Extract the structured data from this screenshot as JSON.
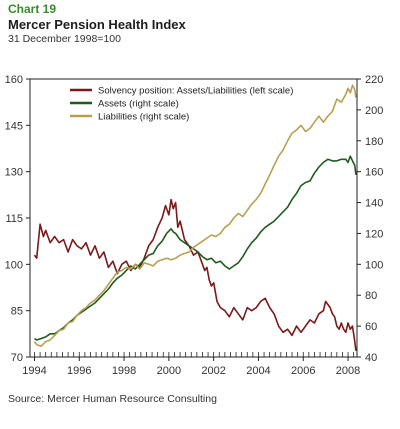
{
  "header": {
    "label": "Chart 19",
    "title": "Mercer Pension Health Index",
    "subtitle": "31 December 1998=100"
  },
  "footer": {
    "source": "Source: Mercer Human Resource Consulting"
  },
  "colors": {
    "solvency": "#7a1a1a",
    "assets": "#1e5c1e",
    "liabilities": "#b8a050"
  },
  "chart_data": {
    "type": "line",
    "title": "Mercer Pension Health Index",
    "subtitle": "31 December 1998=100",
    "xlim": [
      1993.8,
      2008.4
    ],
    "x_ticks": [
      "1994",
      "1996",
      "1998",
      "2000",
      "2002",
      "2004",
      "2006",
      "2008"
    ],
    "y_left": {
      "label": "left scale",
      "ylim": [
        70,
        160
      ],
      "ticks": [
        "70",
        "85",
        "100",
        "115",
        "130",
        "145",
        "160"
      ]
    },
    "y_right": {
      "label": "right scale",
      "ylim": [
        40,
        220
      ],
      "ticks": [
        "40",
        "60",
        "80",
        "100",
        "120",
        "140",
        "160",
        "180",
        "200",
        "220"
      ]
    },
    "legend_position": "top-right",
    "grid": false,
    "series": [
      {
        "name": "Solvency position: Assets/Liabilities (left scale)",
        "axis": "left",
        "color": "#7a1a1a",
        "points": [
          [
            1994.0,
            103
          ],
          [
            1994.1,
            102
          ],
          [
            1994.25,
            113
          ],
          [
            1994.4,
            109
          ],
          [
            1994.5,
            111
          ],
          [
            1994.7,
            107
          ],
          [
            1994.9,
            109
          ],
          [
            1995.1,
            107
          ],
          [
            1995.3,
            108
          ],
          [
            1995.5,
            104
          ],
          [
            1995.7,
            108
          ],
          [
            1995.9,
            106
          ],
          [
            1996.1,
            105
          ],
          [
            1996.3,
            107
          ],
          [
            1996.5,
            103
          ],
          [
            1996.7,
            106
          ],
          [
            1996.9,
            102
          ],
          [
            1997.1,
            104
          ],
          [
            1997.3,
            99
          ],
          [
            1997.5,
            101
          ],
          [
            1997.7,
            97
          ],
          [
            1997.9,
            100
          ],
          [
            1998.1,
            101
          ],
          [
            1998.3,
            98
          ],
          [
            1998.5,
            100
          ],
          [
            1998.7,
            99
          ],
          [
            1998.9,
            102
          ],
          [
            1999.1,
            106
          ],
          [
            1999.3,
            108
          ],
          [
            1999.5,
            112
          ],
          [
            1999.7,
            115
          ],
          [
            1999.85,
            119
          ],
          [
            2000.0,
            116
          ],
          [
            2000.1,
            121
          ],
          [
            2000.2,
            118
          ],
          [
            2000.3,
            120
          ],
          [
            2000.4,
            112
          ],
          [
            2000.5,
            114
          ],
          [
            2000.7,
            108
          ],
          [
            2000.9,
            106
          ],
          [
            2001.1,
            103
          ],
          [
            2001.3,
            104
          ],
          [
            2001.5,
            100
          ],
          [
            2001.6,
            98
          ],
          [
            2001.7,
            99
          ],
          [
            2001.8,
            95
          ],
          [
            2001.9,
            93
          ],
          [
            2002.0,
            94
          ],
          [
            2002.15,
            88
          ],
          [
            2002.3,
            86
          ],
          [
            2002.5,
            85
          ],
          [
            2002.7,
            83
          ],
          [
            2002.9,
            86
          ],
          [
            2003.1,
            84
          ],
          [
            2003.3,
            82
          ],
          [
            2003.5,
            86
          ],
          [
            2003.7,
            85
          ],
          [
            2003.9,
            86
          ],
          [
            2004.1,
            88
          ],
          [
            2004.3,
            89
          ],
          [
            2004.5,
            86
          ],
          [
            2004.7,
            84
          ],
          [
            2004.9,
            80
          ],
          [
            2005.1,
            78
          ],
          [
            2005.3,
            79
          ],
          [
            2005.5,
            77
          ],
          [
            2005.7,
            80
          ],
          [
            2005.9,
            78
          ],
          [
            2006.1,
            80
          ],
          [
            2006.3,
            82
          ],
          [
            2006.5,
            81
          ],
          [
            2006.7,
            84
          ],
          [
            2006.9,
            85
          ],
          [
            2007.0,
            88
          ],
          [
            2007.1,
            87
          ],
          [
            2007.2,
            86
          ],
          [
            2007.3,
            84
          ],
          [
            2007.4,
            83
          ],
          [
            2007.5,
            80
          ],
          [
            2007.6,
            79
          ],
          [
            2007.7,
            81
          ],
          [
            2007.8,
            79
          ],
          [
            2007.9,
            78
          ],
          [
            2008.0,
            81
          ],
          [
            2008.1,
            79
          ],
          [
            2008.2,
            80
          ],
          [
            2008.3,
            75
          ],
          [
            2008.35,
            72
          ]
        ]
      },
      {
        "name": "Assets (right scale)",
        "axis": "right",
        "color": "#1e5c1e",
        "points": [
          [
            1994.0,
            52
          ],
          [
            1994.1,
            51
          ],
          [
            1994.3,
            52
          ],
          [
            1994.5,
            53
          ],
          [
            1994.7,
            55
          ],
          [
            1994.9,
            55
          ],
          [
            1995.1,
            57
          ],
          [
            1995.3,
            59
          ],
          [
            1995.5,
            62
          ],
          [
            1995.7,
            64
          ],
          [
            1995.9,
            67
          ],
          [
            1996.1,
            69
          ],
          [
            1996.3,
            71
          ],
          [
            1996.5,
            73
          ],
          [
            1996.7,
            75
          ],
          [
            1996.9,
            78
          ],
          [
            1997.1,
            81
          ],
          [
            1997.3,
            84
          ],
          [
            1997.5,
            88
          ],
          [
            1997.7,
            91
          ],
          [
            1997.9,
            93
          ],
          [
            1998.1,
            96
          ],
          [
            1998.3,
            99
          ],
          [
            1998.5,
            97
          ],
          [
            1998.7,
            100
          ],
          [
            1998.9,
            103
          ],
          [
            1999.1,
            106
          ],
          [
            1999.3,
            107
          ],
          [
            1999.5,
            112
          ],
          [
            1999.7,
            115
          ],
          [
            1999.9,
            120
          ],
          [
            2000.1,
            123
          ],
          [
            2000.2,
            121
          ],
          [
            2000.3,
            120
          ],
          [
            2000.5,
            116
          ],
          [
            2000.7,
            114
          ],
          [
            2000.9,
            112
          ],
          [
            2001.1,
            110
          ],
          [
            2001.3,
            108
          ],
          [
            2001.5,
            105
          ],
          [
            2001.7,
            103
          ],
          [
            2001.9,
            104
          ],
          [
            2002.1,
            101
          ],
          [
            2002.3,
            102
          ],
          [
            2002.5,
            99
          ],
          [
            2002.7,
            97
          ],
          [
            2002.9,
            99
          ],
          [
            2003.1,
            101
          ],
          [
            2003.3,
            105
          ],
          [
            2003.5,
            110
          ],
          [
            2003.7,
            114
          ],
          [
            2003.9,
            117
          ],
          [
            2004.1,
            121
          ],
          [
            2004.3,
            124
          ],
          [
            2004.5,
            126
          ],
          [
            2004.7,
            128
          ],
          [
            2004.9,
            131
          ],
          [
            2005.1,
            134
          ],
          [
            2005.3,
            137
          ],
          [
            2005.5,
            142
          ],
          [
            2005.7,
            146
          ],
          [
            2005.9,
            151
          ],
          [
            2006.1,
            153
          ],
          [
            2006.3,
            154
          ],
          [
            2006.5,
            159
          ],
          [
            2006.7,
            163
          ],
          [
            2006.9,
            166
          ],
          [
            2007.1,
            168
          ],
          [
            2007.3,
            167
          ],
          [
            2007.5,
            167
          ],
          [
            2007.7,
            168
          ],
          [
            2007.9,
            168
          ],
          [
            2008.0,
            166
          ],
          [
            2008.1,
            170
          ],
          [
            2008.2,
            167
          ],
          [
            2008.3,
            164
          ],
          [
            2008.35,
            158
          ]
        ]
      },
      {
        "name": "Liabilities (right scale)",
        "axis": "right",
        "color": "#b8a050",
        "points": [
          [
            1994.0,
            50
          ],
          [
            1994.1,
            48
          ],
          [
            1994.3,
            47
          ],
          [
            1994.5,
            50
          ],
          [
            1994.7,
            51
          ],
          [
            1994.9,
            54
          ],
          [
            1995.1,
            57
          ],
          [
            1995.3,
            58
          ],
          [
            1995.5,
            62
          ],
          [
            1995.7,
            63
          ],
          [
            1995.9,
            67
          ],
          [
            1996.1,
            70
          ],
          [
            1996.3,
            72
          ],
          [
            1996.5,
            75
          ],
          [
            1996.7,
            77
          ],
          [
            1996.9,
            80
          ],
          [
            1997.1,
            83
          ],
          [
            1997.3,
            87
          ],
          [
            1997.5,
            91
          ],
          [
            1997.7,
            95
          ],
          [
            1997.9,
            96
          ],
          [
            1998.1,
            98
          ],
          [
            1998.3,
            97
          ],
          [
            1998.5,
            100
          ],
          [
            1998.7,
            97
          ],
          [
            1998.9,
            101
          ],
          [
            1999.1,
            100
          ],
          [
            1999.3,
            99
          ],
          [
            1999.5,
            102
          ],
          [
            1999.7,
            103
          ],
          [
            1999.9,
            104
          ],
          [
            2000.1,
            103
          ],
          [
            2000.3,
            104
          ],
          [
            2000.5,
            106
          ],
          [
            2000.7,
            107
          ],
          [
            2000.9,
            108
          ],
          [
            2001.1,
            111
          ],
          [
            2001.3,
            113
          ],
          [
            2001.5,
            115
          ],
          [
            2001.7,
            117
          ],
          [
            2001.9,
            119
          ],
          [
            2002.1,
            118
          ],
          [
            2002.3,
            120
          ],
          [
            2002.5,
            124
          ],
          [
            2002.7,
            126
          ],
          [
            2002.9,
            130
          ],
          [
            2003.1,
            133
          ],
          [
            2003.3,
            131
          ],
          [
            2003.5,
            135
          ],
          [
            2003.7,
            139
          ],
          [
            2003.9,
            142
          ],
          [
            2004.1,
            146
          ],
          [
            2004.3,
            152
          ],
          [
            2004.5,
            158
          ],
          [
            2004.7,
            164
          ],
          [
            2004.9,
            170
          ],
          [
            2005.1,
            174
          ],
          [
            2005.3,
            180
          ],
          [
            2005.5,
            185
          ],
          [
            2005.7,
            187
          ],
          [
            2005.9,
            190
          ],
          [
            2006.1,
            186
          ],
          [
            2006.3,
            188
          ],
          [
            2006.5,
            192
          ],
          [
            2006.7,
            196
          ],
          [
            2006.9,
            192
          ],
          [
            2007.1,
            196
          ],
          [
            2007.3,
            199
          ],
          [
            2007.5,
            207
          ],
          [
            2007.7,
            205
          ],
          [
            2007.9,
            210
          ],
          [
            2008.0,
            214
          ],
          [
            2008.1,
            211
          ],
          [
            2008.2,
            216
          ],
          [
            2008.3,
            213
          ],
          [
            2008.35,
            208
          ]
        ]
      }
    ]
  }
}
